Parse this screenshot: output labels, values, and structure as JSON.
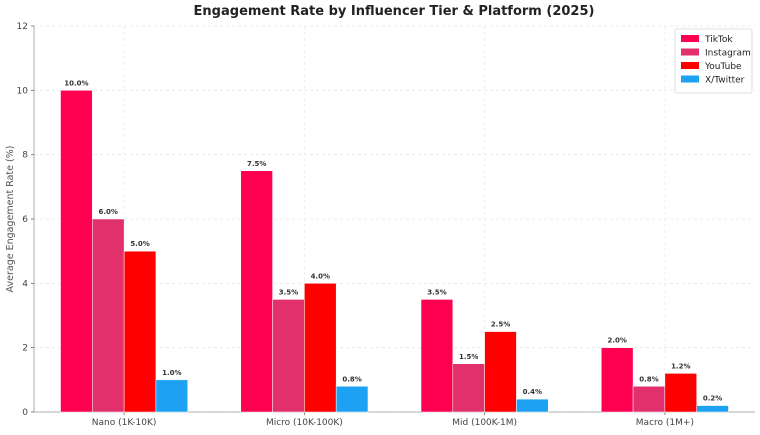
{
  "chart_data": {
    "type": "bar",
    "title": "Engagement Rate by Influencer Tier & Platform (2025)",
    "xlabel": "",
    "ylabel": "Average Engagement Rate (%)",
    "ylim": [
      0,
      12
    ],
    "yticks": [
      0,
      2,
      4,
      6,
      8,
      10,
      12
    ],
    "grid": true,
    "legend_position": "top-right",
    "categories": [
      "Nano (1K-10K)",
      "Micro (10K-100K)",
      "Mid (100K-1M)",
      "Macro (1M+)"
    ],
    "series": [
      {
        "name": "TikTok",
        "color": "#ff0050",
        "values": [
          10.0,
          7.5,
          3.5,
          2.0
        ],
        "labels": [
          "10.0%",
          "7.5%",
          "3.5%",
          "2.0%"
        ]
      },
      {
        "name": "Instagram",
        "color": "#e1306c",
        "values": [
          6.0,
          3.5,
          1.5,
          0.8
        ],
        "labels": [
          "6.0%",
          "3.5%",
          "1.5%",
          "0.8%"
        ]
      },
      {
        "name": "YouTube",
        "color": "#ff0000",
        "values": [
          5.0,
          4.0,
          2.5,
          1.2
        ],
        "labels": [
          "5.0%",
          "4.0%",
          "2.5%",
          "1.2%"
        ]
      },
      {
        "name": "X/Twitter",
        "color": "#1da1f2",
        "values": [
          1.0,
          0.8,
          0.4,
          0.2
        ],
        "labels": [
          "1.0%",
          "0.8%",
          "0.4%",
          "0.2%"
        ]
      }
    ]
  }
}
